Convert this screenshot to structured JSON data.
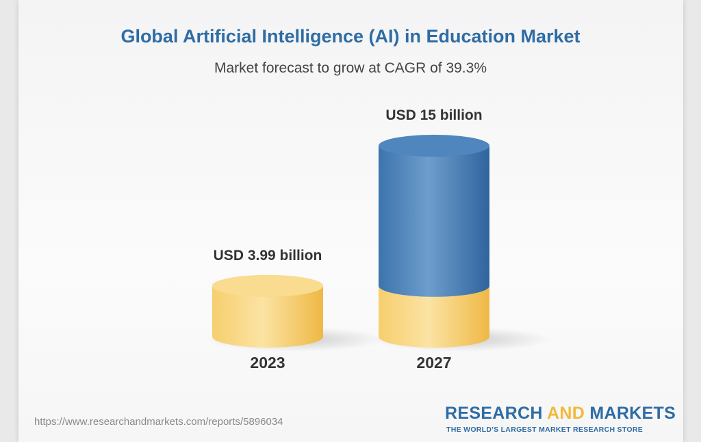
{
  "chart_data": {
    "type": "bar",
    "style": "3d-cylinder",
    "title": "Global Artificial Intelligence (AI) in Education Market",
    "subtitle": "Market forecast to grow at CAGR of 39.3%",
    "categories": [
      "2023",
      "2027"
    ],
    "values": [
      3.99,
      15
    ],
    "unit": "USD billion",
    "data_labels": [
      "USD 3.99 billion",
      "USD 15 billion"
    ],
    "grid": false,
    "colors": {
      "base": "#f2c55c",
      "growth": "#3f7bb5",
      "title": "#2e6ca4"
    }
  },
  "footer": {
    "url": "https://www.researchandmarkets.com/reports/5896034",
    "logo_part1": "RESEARCH ",
    "logo_part2": "AND",
    "logo_part3": " MARKETS",
    "tagline": "THE WORLD'S LARGEST MARKET RESEARCH STORE"
  }
}
